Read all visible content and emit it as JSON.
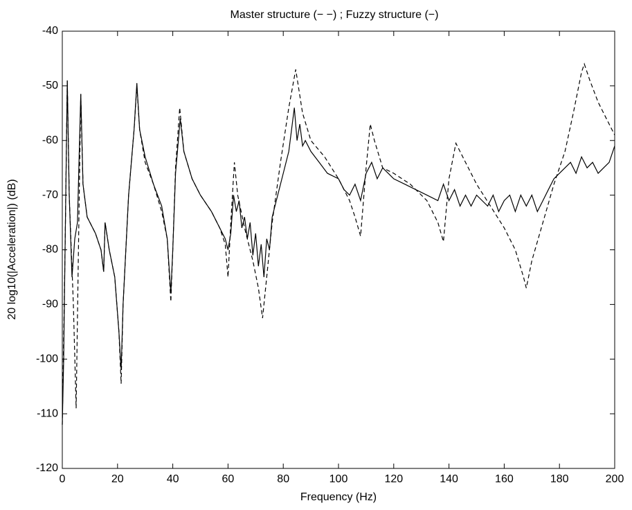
{
  "chart_data": {
    "type": "line",
    "title": "Master structure (− −) ; Fuzzy structure (−)",
    "xlabel": "Frequency (Hz)",
    "ylabel": "20 log10(|Acceleration|) (dB)",
    "xlim": [
      0,
      200
    ],
    "xticks": [
      0,
      20,
      40,
      60,
      80,
      100,
      120,
      140,
      160,
      180,
      200
    ],
    "ylim": [
      -120,
      -40
    ],
    "yticks": [
      -120,
      -110,
      -100,
      -90,
      -80,
      -70,
      -60,
      -50,
      -40
    ],
    "series": [
      {
        "color": "#000000",
        "dashed": true,
        "x": [
          0,
          1,
          1.8,
          2.5,
          4,
          5,
          6,
          6.7,
          7.5,
          9,
          12,
          14,
          15,
          15.5,
          17,
          19,
          20.5,
          21.3,
          22,
          24,
          26,
          27,
          28,
          30,
          33,
          36,
          38,
          39.3,
          40,
          41,
          42.5,
          44,
          47,
          50,
          54,
          57,
          59,
          60,
          61,
          62.3,
          63.5,
          66,
          69,
          71,
          72.5,
          74,
          76,
          79,
          82,
          84.5,
          87,
          90,
          95,
          100,
          104,
          106,
          108,
          110,
          111.5,
          113,
          116,
          120,
          126,
          132,
          136,
          138,
          140,
          142.5,
          145,
          150,
          155,
          160,
          164,
          167,
          168,
          170,
          174,
          178,
          182,
          185,
          188,
          189,
          191,
          194,
          197,
          200
        ],
        "values": [
          -112,
          -80,
          -49,
          -70,
          -90,
          -109,
          -75,
          -51.5,
          -68,
          -74,
          -77,
          -80,
          -84,
          -75,
          -80,
          -85,
          -95,
          -104.5,
          -90,
          -70,
          -58,
          -50,
          -58,
          -64,
          -68,
          -73,
          -78,
          -89.5,
          -80,
          -65,
          -54,
          -62,
          -67,
          -70,
          -73,
          -76,
          -79,
          -85,
          -75,
          -64,
          -70,
          -76,
          -82,
          -87,
          -92.5,
          -85,
          -75,
          -64,
          -54,
          -47,
          -55,
          -60,
          -63,
          -67,
          -71,
          -74,
          -77.5,
          -65,
          -57,
          -60,
          -65,
          -66,
          -68,
          -71,
          -75,
          -78.5,
          -67,
          -60.5,
          -63,
          -68,
          -72,
          -76,
          -80,
          -85,
          -87,
          -82,
          -75,
          -68,
          -62,
          -55,
          -47.5,
          -46,
          -49,
          -53,
          -56,
          -59
        ]
      },
      {
        "color": "#000000",
        "dashed": false,
        "x": [
          0,
          0.5,
          1,
          1.8,
          2.5,
          3.5,
          4.5,
          5.5,
          6,
          6.7,
          7.5,
          9,
          12,
          14,
          15,
          15.5,
          17,
          19,
          20.5,
          21.3,
          22,
          24,
          26,
          27,
          28,
          30,
          33,
          36,
          38,
          39.3,
          40,
          41,
          42.7,
          44,
          47,
          50,
          54,
          57,
          59,
          60,
          61,
          62,
          63,
          64,
          65,
          66,
          67,
          68,
          69,
          70,
          71,
          72,
          73,
          74,
          75,
          76,
          78,
          80,
          82,
          83,
          84,
          85,
          86,
          87,
          88,
          90,
          93,
          96,
          100,
          102,
          104,
          106,
          108,
          110,
          112,
          114,
          116,
          118,
          120,
          124,
          128,
          132,
          136,
          138,
          140,
          142,
          144,
          146,
          148,
          150,
          154,
          156,
          158,
          160,
          162,
          164,
          166,
          168,
          170,
          172,
          174,
          176,
          178,
          180,
          182,
          184,
          186,
          188,
          190,
          192,
          194,
          196,
          198,
          200
        ],
        "values": [
          -112,
          -100,
          -80,
          -49,
          -70,
          -85,
          -78,
          -75,
          -65,
          -51.5,
          -68,
          -74,
          -77,
          -80,
          -84,
          -75,
          -80,
          -85,
          -95,
          -102,
          -90,
          -70,
          -58,
          -49.5,
          -58,
          -63,
          -68,
          -72,
          -78,
          -88,
          -80,
          -66,
          -56,
          -62,
          -67,
          -70,
          -73,
          -76,
          -78,
          -80,
          -77,
          -70,
          -73,
          -71,
          -76,
          -74,
          -78,
          -75,
          -81,
          -77,
          -83,
          -79,
          -85,
          -78,
          -80,
          -74,
          -70,
          -66,
          -62,
          -58,
          -54,
          -60,
          -57,
          -61,
          -60,
          -62,
          -64,
          -66,
          -67,
          -69,
          -70,
          -68,
          -71,
          -66,
          -64,
          -67,
          -65,
          -66,
          -67,
          -68,
          -69,
          -70,
          -71,
          -68,
          -71,
          -69,
          -72,
          -70,
          -72,
          -70,
          -72,
          -70,
          -73,
          -71,
          -70,
          -73,
          -70,
          -72,
          -70,
          -73,
          -71,
          -69,
          -67,
          -66,
          -65,
          -64,
          -66,
          -63,
          -65,
          -64,
          -66,
          -65,
          -64,
          -61
        ]
      }
    ]
  }
}
